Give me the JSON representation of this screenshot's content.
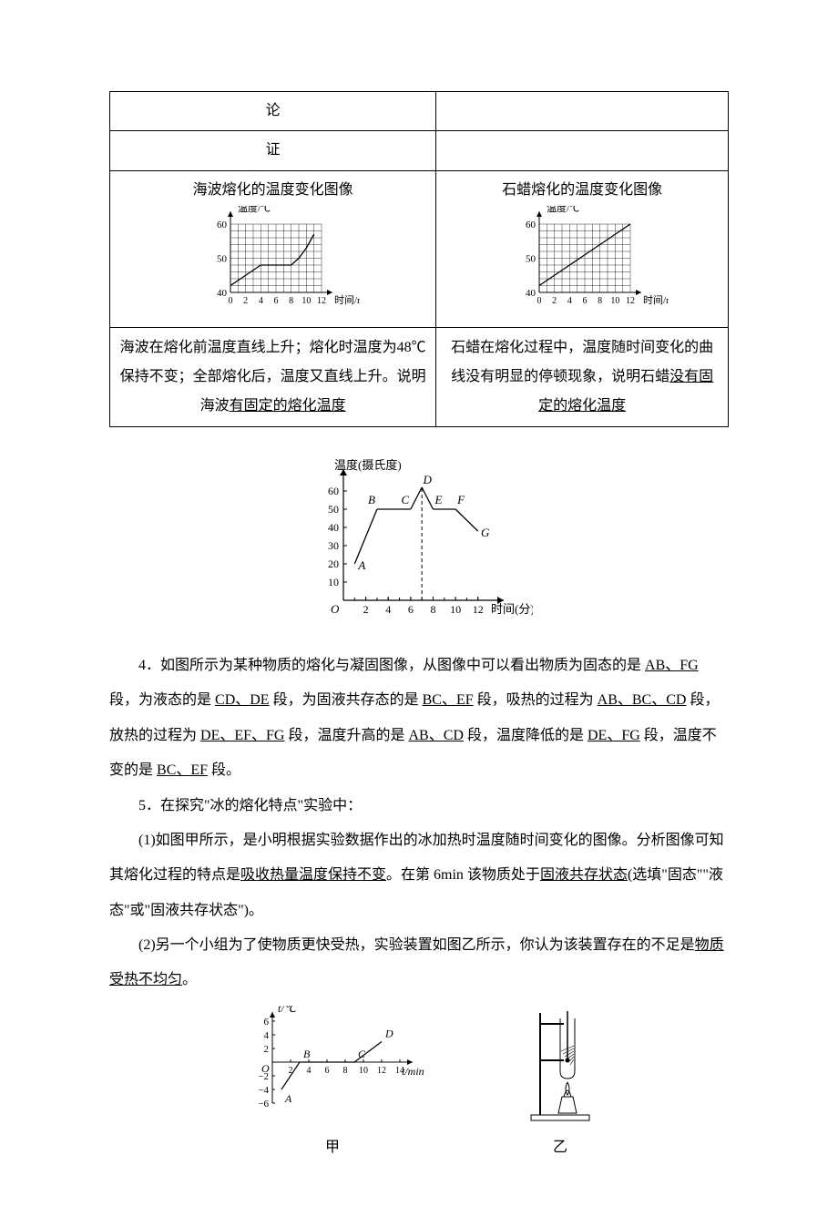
{
  "table": {
    "row1_left": "论",
    "row1_right": "",
    "row2_left": "证",
    "row2_right": "",
    "chart1_title": "海波熔化的温度变化图像",
    "chart2_title": "石蜡熔化的温度变化图像",
    "chart_ylabel": "温度/℃",
    "chart_xlabel": "时间/min",
    "chart_yticks": [
      40,
      50,
      60
    ],
    "chart_xticks": [
      0,
      2,
      4,
      6,
      8,
      10,
      12
    ],
    "chart1": {
      "type": "line",
      "xlim": [
        0,
        12
      ],
      "ylim": [
        40,
        60
      ],
      "background_color": "#ffffff",
      "grid_color": "#000000",
      "line_color": "#000000",
      "line_width": 1.3,
      "points": [
        [
          0,
          42
        ],
        [
          2,
          45
        ],
        [
          4,
          48
        ],
        [
          6,
          48
        ],
        [
          8,
          48
        ],
        [
          9,
          50
        ],
        [
          10,
          53
        ],
        [
          11,
          57
        ]
      ]
    },
    "chart2": {
      "type": "line",
      "xlim": [
        0,
        12
      ],
      "ylim": [
        40,
        60
      ],
      "background_color": "#ffffff",
      "grid_color": "#000000",
      "line_color": "#000000",
      "line_width": 1.3,
      "points": [
        [
          0,
          42
        ],
        [
          2,
          45
        ],
        [
          4,
          48
        ],
        [
          6,
          51
        ],
        [
          8,
          54
        ],
        [
          10,
          57
        ],
        [
          12,
          60
        ]
      ]
    },
    "desc1_prefix": "海波在熔化前温度直线上升；熔化时温度为48℃保持不变；全部熔化后，温度又直线上升。说明海波",
    "desc1_under": "有固定的熔化温度",
    "desc2_prefix": "石蜡在熔化过程中，温度随时间变化的曲线没有明显的停顿现象，说明石蜡",
    "desc2_under": "没有固定的熔化温度"
  },
  "fig2": {
    "type": "line",
    "ylabel": "温度(摄氏度)",
    "xlabel": "时间(分)",
    "yticks": [
      10,
      20,
      30,
      40,
      50,
      60
    ],
    "xticks": [
      2,
      4,
      6,
      8,
      10,
      12
    ],
    "xlim": [
      0,
      13
    ],
    "ylim": [
      0,
      65
    ],
    "axis_color": "#000000",
    "line_color": "#000000",
    "line_width": 1.3,
    "dash_color": "#000000",
    "points": {
      "A": [
        1,
        20
      ],
      "B": [
        3,
        50
      ],
      "C": [
        6,
        50
      ],
      "D": [
        7,
        62
      ],
      "E": [
        8,
        50
      ],
      "F": [
        10,
        50
      ],
      "G": [
        12,
        38
      ]
    },
    "segments": [
      [
        "A",
        "B"
      ],
      [
        "B",
        "C"
      ],
      [
        "C",
        "D"
      ],
      [
        "D",
        "E"
      ],
      [
        "E",
        "F"
      ],
      [
        "F",
        "G"
      ]
    ]
  },
  "q4": {
    "prefix": "4．如图所示为某种物质的熔化与凝固图像，从图像中可以看出物质为固态的是 ",
    "ans1": "AB、FG",
    "t2": " 段，为液态的是 ",
    "ans2": "CD、DE",
    "t3": " 段，为固液共存态的是 ",
    "ans3": "BC、EF",
    "t4": " 段，吸热的过程为 ",
    "ans4": "AB、BC、CD",
    "t5": " 段，放热的过程为 ",
    "ans5": "DE、EF、FG",
    "t6": " 段，温度升高的是 ",
    "ans6": "AB、CD",
    "t7": " 段，温度降低的是 ",
    "ans7": "DE、FG",
    "t8": " 段，温度不变的是 ",
    "ans8": "BC、EF",
    "t9": " 段。"
  },
  "q5": {
    "head": "5．在探究\"冰的熔化特点\"实验中：",
    "p1_a": "(1)如图甲所示，是小明根据实验数据作出的冰加热时温度随时间变化的图像。分析图像可知其熔化过程的特点是",
    "p1_ans1": "吸收热量温度保持不变",
    "p1_b": "。在第 6min 该物质处于",
    "p1_ans2": "固液共存状态",
    "p1_c": "(选填\"固态\"\"液态\"或\"固液共存状态\")。",
    "p2_a": "(2)另一个小组为了使物质更快受热，实验装置如图乙所示，你认为该装置存在的不足是",
    "p2_ans": "物质受热不均匀",
    "p2_b": "。"
  },
  "fig3": {
    "type": "line",
    "ylabel": "t/℃",
    "xlabel": "t/min",
    "yticks": [
      -6,
      -4,
      -2,
      2,
      4,
      6
    ],
    "xticks": [
      2,
      4,
      6,
      8,
      10,
      12,
      14
    ],
    "xlim": [
      0,
      14
    ],
    "ylim": [
      -6,
      6
    ],
    "axis_color": "#000000",
    "line_color": "#000000",
    "line_width": 1.2,
    "labels": {
      "A": [
        1,
        -4
      ],
      "B": [
        3,
        0
      ],
      "C": [
        9,
        0
      ],
      "D": [
        12,
        3
      ]
    },
    "points": [
      [
        1,
        -4
      ],
      [
        3,
        0
      ],
      [
        9,
        0
      ],
      [
        12,
        3
      ]
    ],
    "caption": "甲"
  },
  "fig4": {
    "caption": "乙"
  }
}
